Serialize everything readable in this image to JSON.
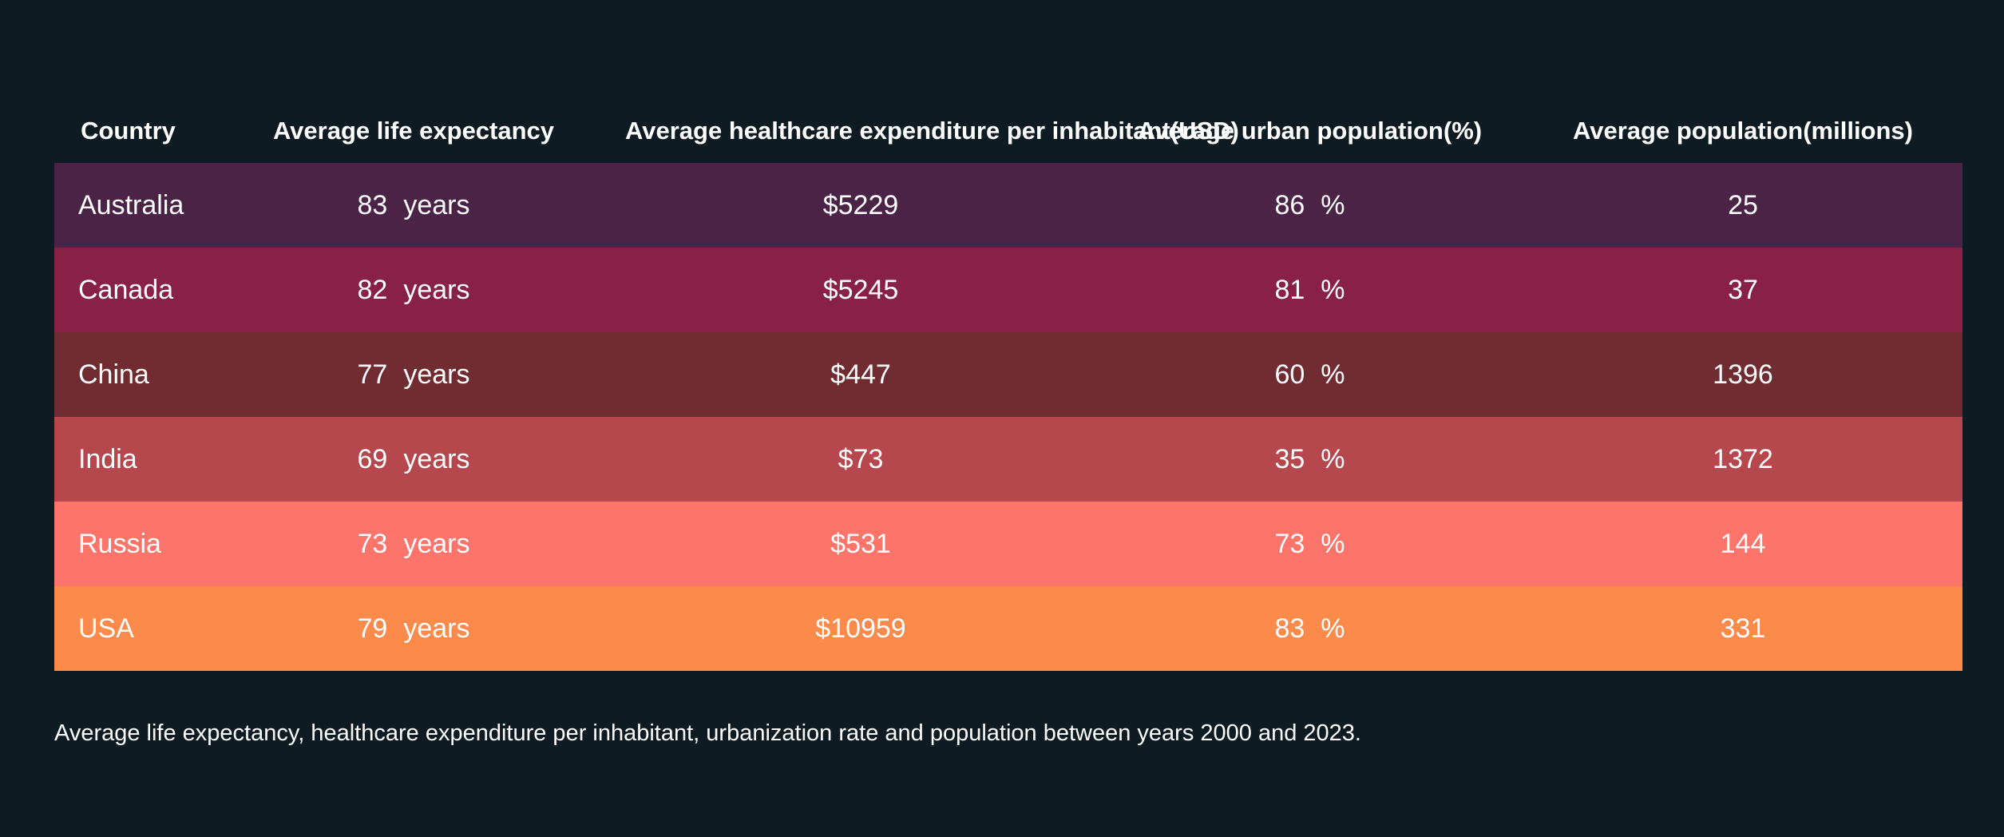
{
  "chart_data": {
    "type": "table",
    "columns": [
      "Country",
      "Average life expectancy",
      "Average healthcare expenditure per inhabitant(USD)",
      "Average urban population(%)",
      "Average population(millions)"
    ],
    "rows": [
      {
        "country": "Australia",
        "life": "83",
        "life_unit": "years",
        "spend": "$5229",
        "urban": "86",
        "urban_unit": "%",
        "pop": "25",
        "color": "#4a2346"
      },
      {
        "country": "Canada",
        "life": "82",
        "life_unit": "years",
        "spend": "$5245",
        "urban": "81",
        "urban_unit": "%",
        "pop": "37",
        "color": "#892045"
      },
      {
        "country": "China",
        "life": "77",
        "life_unit": "years",
        "spend": "$447",
        "urban": "60",
        "urban_unit": "%",
        "pop": "1396",
        "color": "#702c31"
      },
      {
        "country": "India",
        "life": "69",
        "life_unit": "years",
        "spend": "$73",
        "urban": "35",
        "urban_unit": "%",
        "pop": "1372",
        "color": "#b5474d"
      },
      {
        "country": "Russia",
        "life": "73",
        "life_unit": "years",
        "spend": "$531",
        "urban": "73",
        "urban_unit": "%",
        "pop": "144",
        "color": "#fd746b"
      },
      {
        "country": "USA",
        "life": "79",
        "life_unit": "years",
        "spend": "$10959",
        "urban": "83",
        "urban_unit": "%",
        "pop": "331",
        "color": "#fc8a4a"
      }
    ],
    "caption": "Average life expectancy, healthcare expenditure per inhabitant, urbanization rate and population between years 2000 and 2023."
  }
}
